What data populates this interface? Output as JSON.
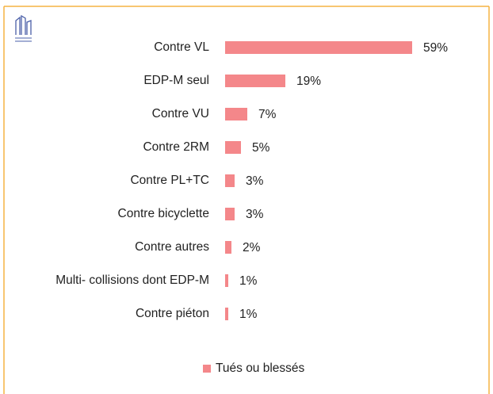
{
  "chart_data": {
    "type": "bar",
    "orientation": "horizontal",
    "categories": [
      "Contre VL",
      "EDP-M seul",
      "Contre VU",
      "Contre 2RM",
      "Contre PL+TC",
      "Contre bicyclette",
      "Contre autres",
      "Multi- collisions dont EDP-M",
      "Contre piéton"
    ],
    "series": [
      {
        "name": "Tués ou blessés",
        "color": "#f4878a",
        "values": [
          59,
          19,
          7,
          5,
          3,
          3,
          2,
          1,
          1
        ],
        "value_labels": [
          "59%",
          "19%",
          "7%",
          "5%",
          "3%",
          "3%",
          "2%",
          "1%",
          "1%"
        ]
      }
    ],
    "legend": "bottom"
  }
}
